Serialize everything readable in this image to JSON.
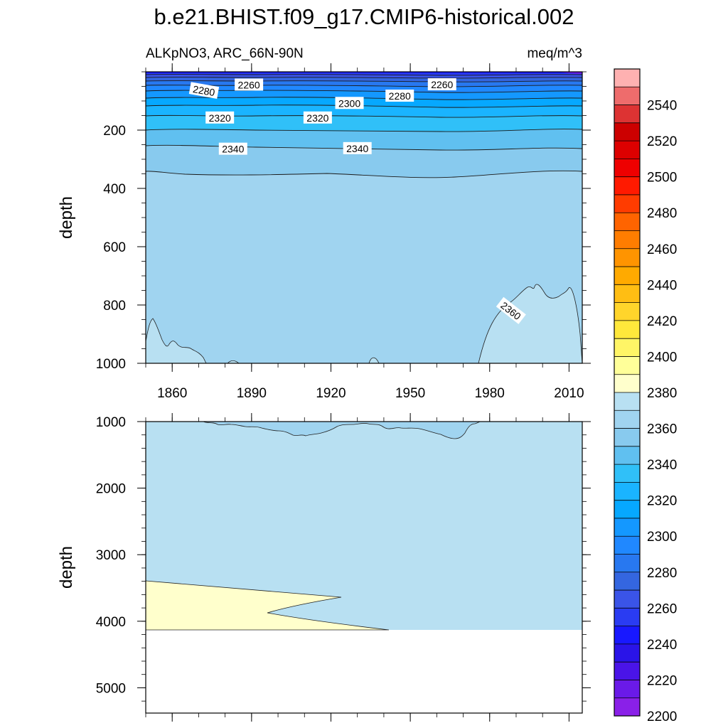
{
  "chart_data": [
    {
      "type": "contour",
      "panel": "upper",
      "title": "b.e21.BHIST.f09_g17.CMIP6-historical.002",
      "subtitle_left": "ALKpNO3, ARC_66N-90N",
      "subtitle_right": "meq/m^3",
      "ylabel": "depth",
      "xlim": [
        1850,
        2015
      ],
      "ylim": [
        1000,
        0
      ],
      "x_ticks": [
        "1860",
        "1890",
        "1920",
        "1950",
        "1980",
        "2010"
      ],
      "y_ticks": [
        "200",
        "400",
        "600",
        "800",
        "1000"
      ],
      "contour_labels": [
        {
          "text": "2260",
          "x": 1889,
          "y": 45,
          "angle": 0
        },
        {
          "text": "2280",
          "x": 1872,
          "y": 65,
          "angle": 10
        },
        {
          "text": "2260",
          "x": 1962,
          "y": 44,
          "angle": 0
        },
        {
          "text": "2280",
          "x": 1946,
          "y": 83,
          "angle": 0
        },
        {
          "text": "2300",
          "x": 1927,
          "y": 108,
          "angle": 0
        },
        {
          "text": "2320",
          "x": 1878,
          "y": 158,
          "angle": 0
        },
        {
          "text": "2320",
          "x": 1915,
          "y": 158,
          "angle": 0
        },
        {
          "text": "2340",
          "x": 1883,
          "y": 265,
          "angle": 0
        },
        {
          "text": "2340",
          "x": 1930,
          "y": 263,
          "angle": 0
        },
        {
          "text": "2360",
          "x": 1988,
          "y": 820,
          "angle": 38
        }
      ]
    },
    {
      "type": "contour",
      "panel": "lower",
      "ylabel": "depth",
      "xlim": [
        1850,
        2015
      ],
      "ylim": [
        5380,
        1000
      ],
      "y_ticks": [
        "1000",
        "2000",
        "3000",
        "4000",
        "5000"
      ],
      "ocean_bottom_depth": 4120
    }
  ],
  "colorbar": {
    "labels": [
      "2540",
      "2520",
      "2500",
      "2480",
      "2460",
      "2440",
      "2420",
      "2400",
      "2380",
      "2360",
      "2340",
      "2320",
      "2300",
      "2280",
      "2260",
      "2240",
      "2220",
      "2200"
    ],
    "colors": [
      "#feb1b1",
      "#ee6c6c",
      "#dd3333",
      "#cc0000",
      "#dd0000",
      "#ee0000",
      "#ff1a00",
      "#ff3c00",
      "#ff6400",
      "#ff7d00",
      "#ff9400",
      "#ffaa00",
      "#ffbe13",
      "#ffd52b",
      "#ffe83b",
      "#fff566",
      "#ffff99",
      "#ffffcc",
      "#b8e0f2",
      "#a0d4f0",
      "#88caee",
      "#60c0f0",
      "#30c0f8",
      "#1ab4ff",
      "#06a8ff",
      "#1498ff",
      "#2088ff",
      "#2878f0",
      "#3466e0",
      "#3a54e8",
      "#2a3cf2",
      "#1818ff",
      "#2a14e8",
      "#4a14e8",
      "#6a1ae8",
      "#8a20e8"
    ]
  }
}
